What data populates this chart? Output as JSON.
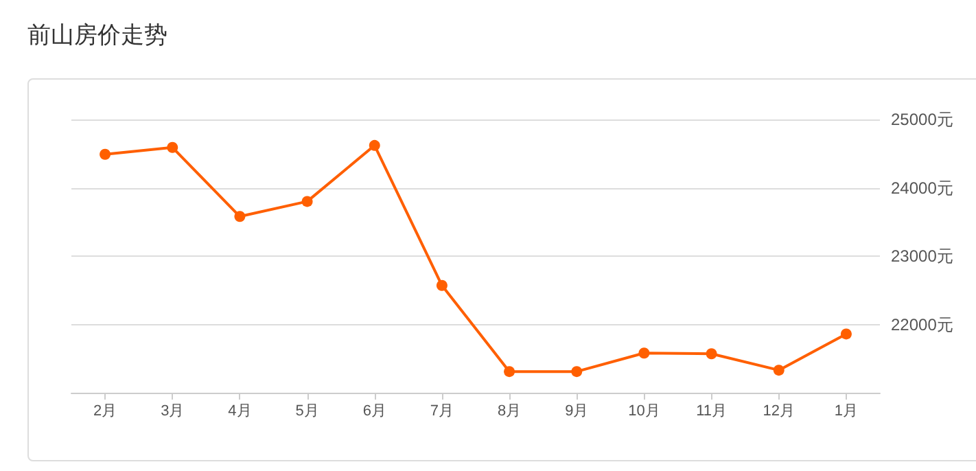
{
  "chart_data": {
    "type": "line",
    "title": "前山房价走势",
    "categories": [
      "2月",
      "3月",
      "4月",
      "5月",
      "6月",
      "7月",
      "8月",
      "9月",
      "10月",
      "11月",
      "12月",
      "1月"
    ],
    "series": [
      {
        "color": "#ff5f00",
        "values": [
          24490,
          24590,
          23580,
          23800,
          24620,
          22570,
          21310,
          21310,
          21580,
          21570,
          21330,
          21860
        ]
      }
    ],
    "ylim": [
      21000,
      25000
    ],
    "yticks": [
      {
        "value": 22000,
        "label": "22000元"
      },
      {
        "value": 23000,
        "label": "23000元"
      },
      {
        "value": 24000,
        "label": "24000元"
      },
      {
        "value": 25000,
        "label": "25000元"
      }
    ],
    "grid": "y",
    "marker": "circle",
    "line_style": "solid"
  }
}
